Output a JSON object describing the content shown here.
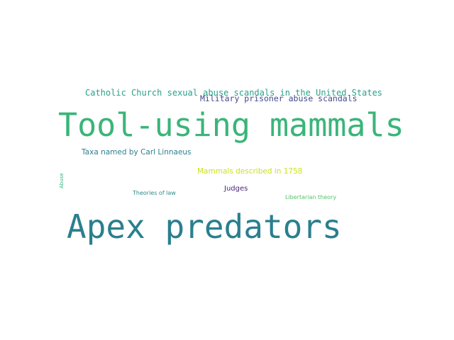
{
  "word_cloud": {
    "words": [
      {
        "text": "Catholic Church sexual abuse scandals in the United States",
        "color": "#2aa08a"
      },
      {
        "text": "Military prisoner abuse scandals",
        "color": "#3f4a8b"
      },
      {
        "text": "Tool-using mammals",
        "color": "#3ab579"
      },
      {
        "text": "Taxa named by Carl Linnaeus",
        "color": "#2c7f8e"
      },
      {
        "text": "Mammals described in 1758",
        "color": "#cde11d"
      },
      {
        "text": "Abuse",
        "color": "#2fb47c",
        "orientation": "vertical"
      },
      {
        "text": "Judges",
        "color": "#482979"
      },
      {
        "text": "Theories of law",
        "color": "#2c8a8c"
      },
      {
        "text": "Libertarian theory",
        "color": "#52c569"
      },
      {
        "text": "Apex predators",
        "color": "#2a7f8e"
      }
    ]
  }
}
